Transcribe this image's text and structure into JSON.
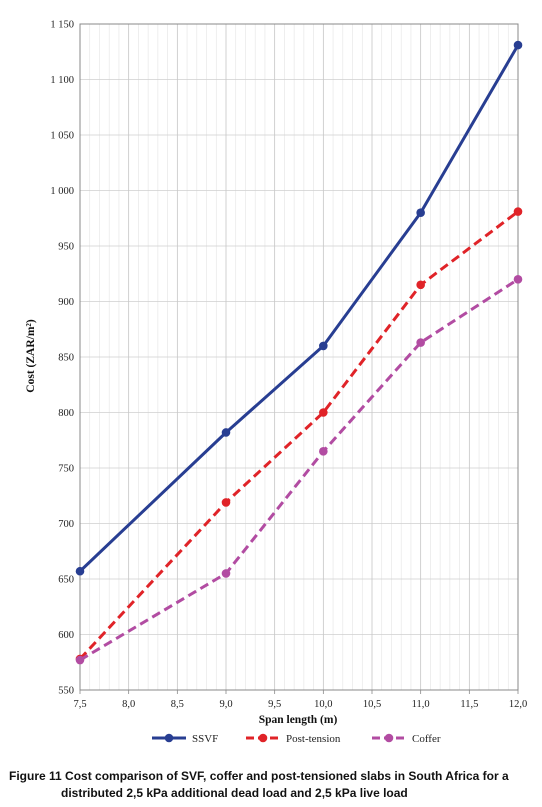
{
  "chart_data": {
    "type": "line",
    "xlabel": "Span length (m)",
    "ylabel": "Cost (ZAR/m²)",
    "x": [
      7.5,
      9.0,
      10.0,
      11.0,
      12.0
    ],
    "xlim": [
      7.5,
      12.0
    ],
    "ylim": [
      550,
      1150
    ],
    "x_ticks": [
      "7,5",
      "8,0",
      "8,5",
      "9,0",
      "9,5",
      "10,0",
      "10,5",
      "11,0",
      "11,5",
      "12,0"
    ],
    "y_ticks": [
      "550",
      "600",
      "650",
      "700",
      "750",
      "800",
      "850",
      "900",
      "950",
      "1 000",
      "1 050",
      "1 100",
      "1 150"
    ],
    "grid": true,
    "legend_position": "bottom",
    "series": [
      {
        "name": "SSVF",
        "values": [
          657,
          782,
          860,
          980,
          1131
        ],
        "color": "#283e92",
        "style": "solid"
      },
      {
        "name": "Post-tension",
        "values": [
          578,
          719,
          800,
          915,
          981
        ],
        "color": "#e02328",
        "style": "dashed"
      },
      {
        "name": "Coffer",
        "values": [
          577,
          655,
          765,
          863,
          920
        ],
        "color": "#b24ca2",
        "style": "dashed"
      }
    ]
  },
  "caption": {
    "label": "Figure 11",
    "line1": " Cost comparison of SVF, coffer and post-tensioned slabs in South Africa for a",
    "line2": "distributed 2,5 kPa additional dead load and 2,5 kPa live load"
  }
}
